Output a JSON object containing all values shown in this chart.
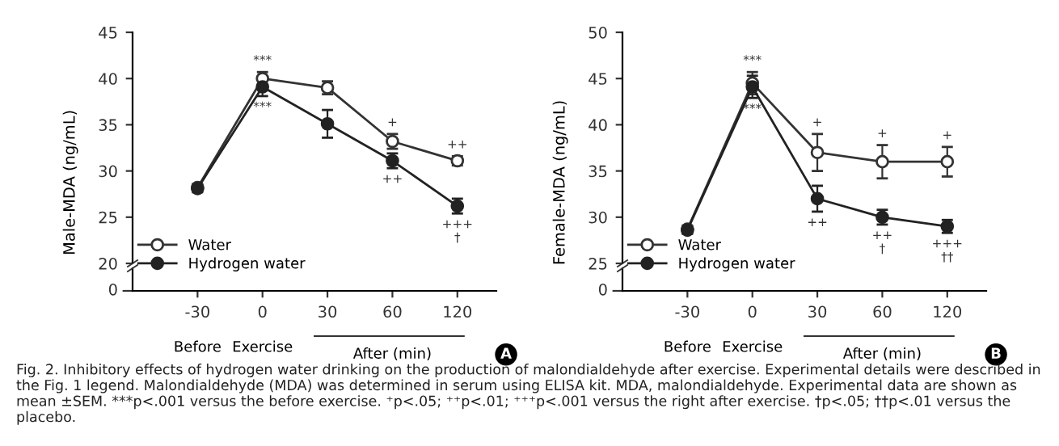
{
  "chart_data": [
    {
      "type": "line",
      "ylabel": "Male-MDA (ng/mL)",
      "categories": [
        "-30",
        "0",
        "30",
        "60",
        "120"
      ],
      "ylim": [
        20,
        45
      ],
      "yticks": [
        20,
        25,
        30,
        35,
        40,
        45
      ],
      "marker": "circle",
      "line_style": "solid",
      "legend": "bottom left",
      "grid": false,
      "series": [
        {
          "name": "Water",
          "color": "#333333",
          "values": [
            28.2,
            40.0,
            39.0,
            33.2,
            31.1
          ],
          "errors": [
            0.4,
            0.7,
            0.7,
            0.8,
            0.5
          ]
        },
        {
          "name": "Hydrogen water",
          "color": "#222222",
          "values": [
            28.1,
            39.1,
            35.1,
            31.1,
            26.2
          ],
          "errors": [
            0.4,
            1.0,
            1.5,
            0.8,
            0.8
          ]
        }
      ],
      "annotations": [
        "0",
        "Before",
        "Exercise",
        "After (min)",
        "A",
        "Fig. 2. Inhibitory effects of hydrogen water drinking on the production of malondialdehyde after exercise. Experimental details were described in the Fig. 1 legend. Malondialdehyde (MDA) was determined in serum using ELISA kit. MDA, malondialdehyde. Experimental data are shown as mean ±SEM. ***p<.001 versus the before exercise. ⁺p<.05; ⁺⁺p<.01; ⁺⁺⁺p<.001 versus the right after exercise. †p<.05; ††p<.01 versus the placebo.",
        {
          "text": "***",
          "x": "0",
          "y": 40.0
        },
        {
          "text": "***",
          "x": "0",
          "y": 39.1
        },
        {
          "text": "+",
          "x": "60",
          "y": 33.2
        },
        {
          "text": "++",
          "x": "60",
          "y": 31.1
        },
        {
          "text": "++",
          "x": "120",
          "y": 31.1
        },
        {
          "text": "+++",
          "x": "120",
          "y": 26.2
        },
        {
          "text": "†",
          "x": "120",
          "y": 26.2
        }
      ]
    },
    {
      "type": "line",
      "ylabel": "Female-MDA (ng/mL)",
      "categories": [
        "-30",
        "0",
        "30",
        "60",
        "120"
      ],
      "ylim": [
        25,
        50
      ],
      "yticks": [
        25,
        30,
        35,
        40,
        45,
        50
      ],
      "marker": "circle",
      "line_style": "solid",
      "legend": "bottom left",
      "grid": false,
      "series": [
        {
          "name": "Water",
          "color": "#333333",
          "values": [
            28.7,
            44.5,
            37.0,
            36.0,
            36.0
          ],
          "errors": [
            0.4,
            1.2,
            2.0,
            1.8,
            1.6
          ]
        },
        {
          "name": "Hydrogen water",
          "color": "#222222",
          "values": [
            28.6,
            44.1,
            32.0,
            30.0,
            29.0
          ],
          "errors": [
            0.4,
            1.2,
            1.4,
            0.8,
            0.7
          ]
        }
      ],
      "annotations": [
        "0",
        "Before",
        "Exercise",
        "After (min)",
        "B",
        {
          "text": "***",
          "x": "0",
          "y": 44.5
        },
        {
          "text": "***",
          "x": "0",
          "y": 44.1
        },
        {
          "text": "+",
          "x": "30",
          "y": 37.0
        },
        {
          "text": "+",
          "x": "60",
          "y": 36.0
        },
        {
          "text": "+",
          "x": "120",
          "y": 36.0
        },
        {
          "text": "++",
          "x": "30",
          "y": 32.0
        },
        {
          "text": "++",
          "x": "60",
          "y": 30.0
        },
        {
          "text": "†",
          "x": "60",
          "y": 30.0
        },
        {
          "text": "+++",
          "x": "120",
          "y": 29.0
        },
        {
          "text": "††",
          "x": "120",
          "y": 29.0
        }
      ]
    }
  ]
}
